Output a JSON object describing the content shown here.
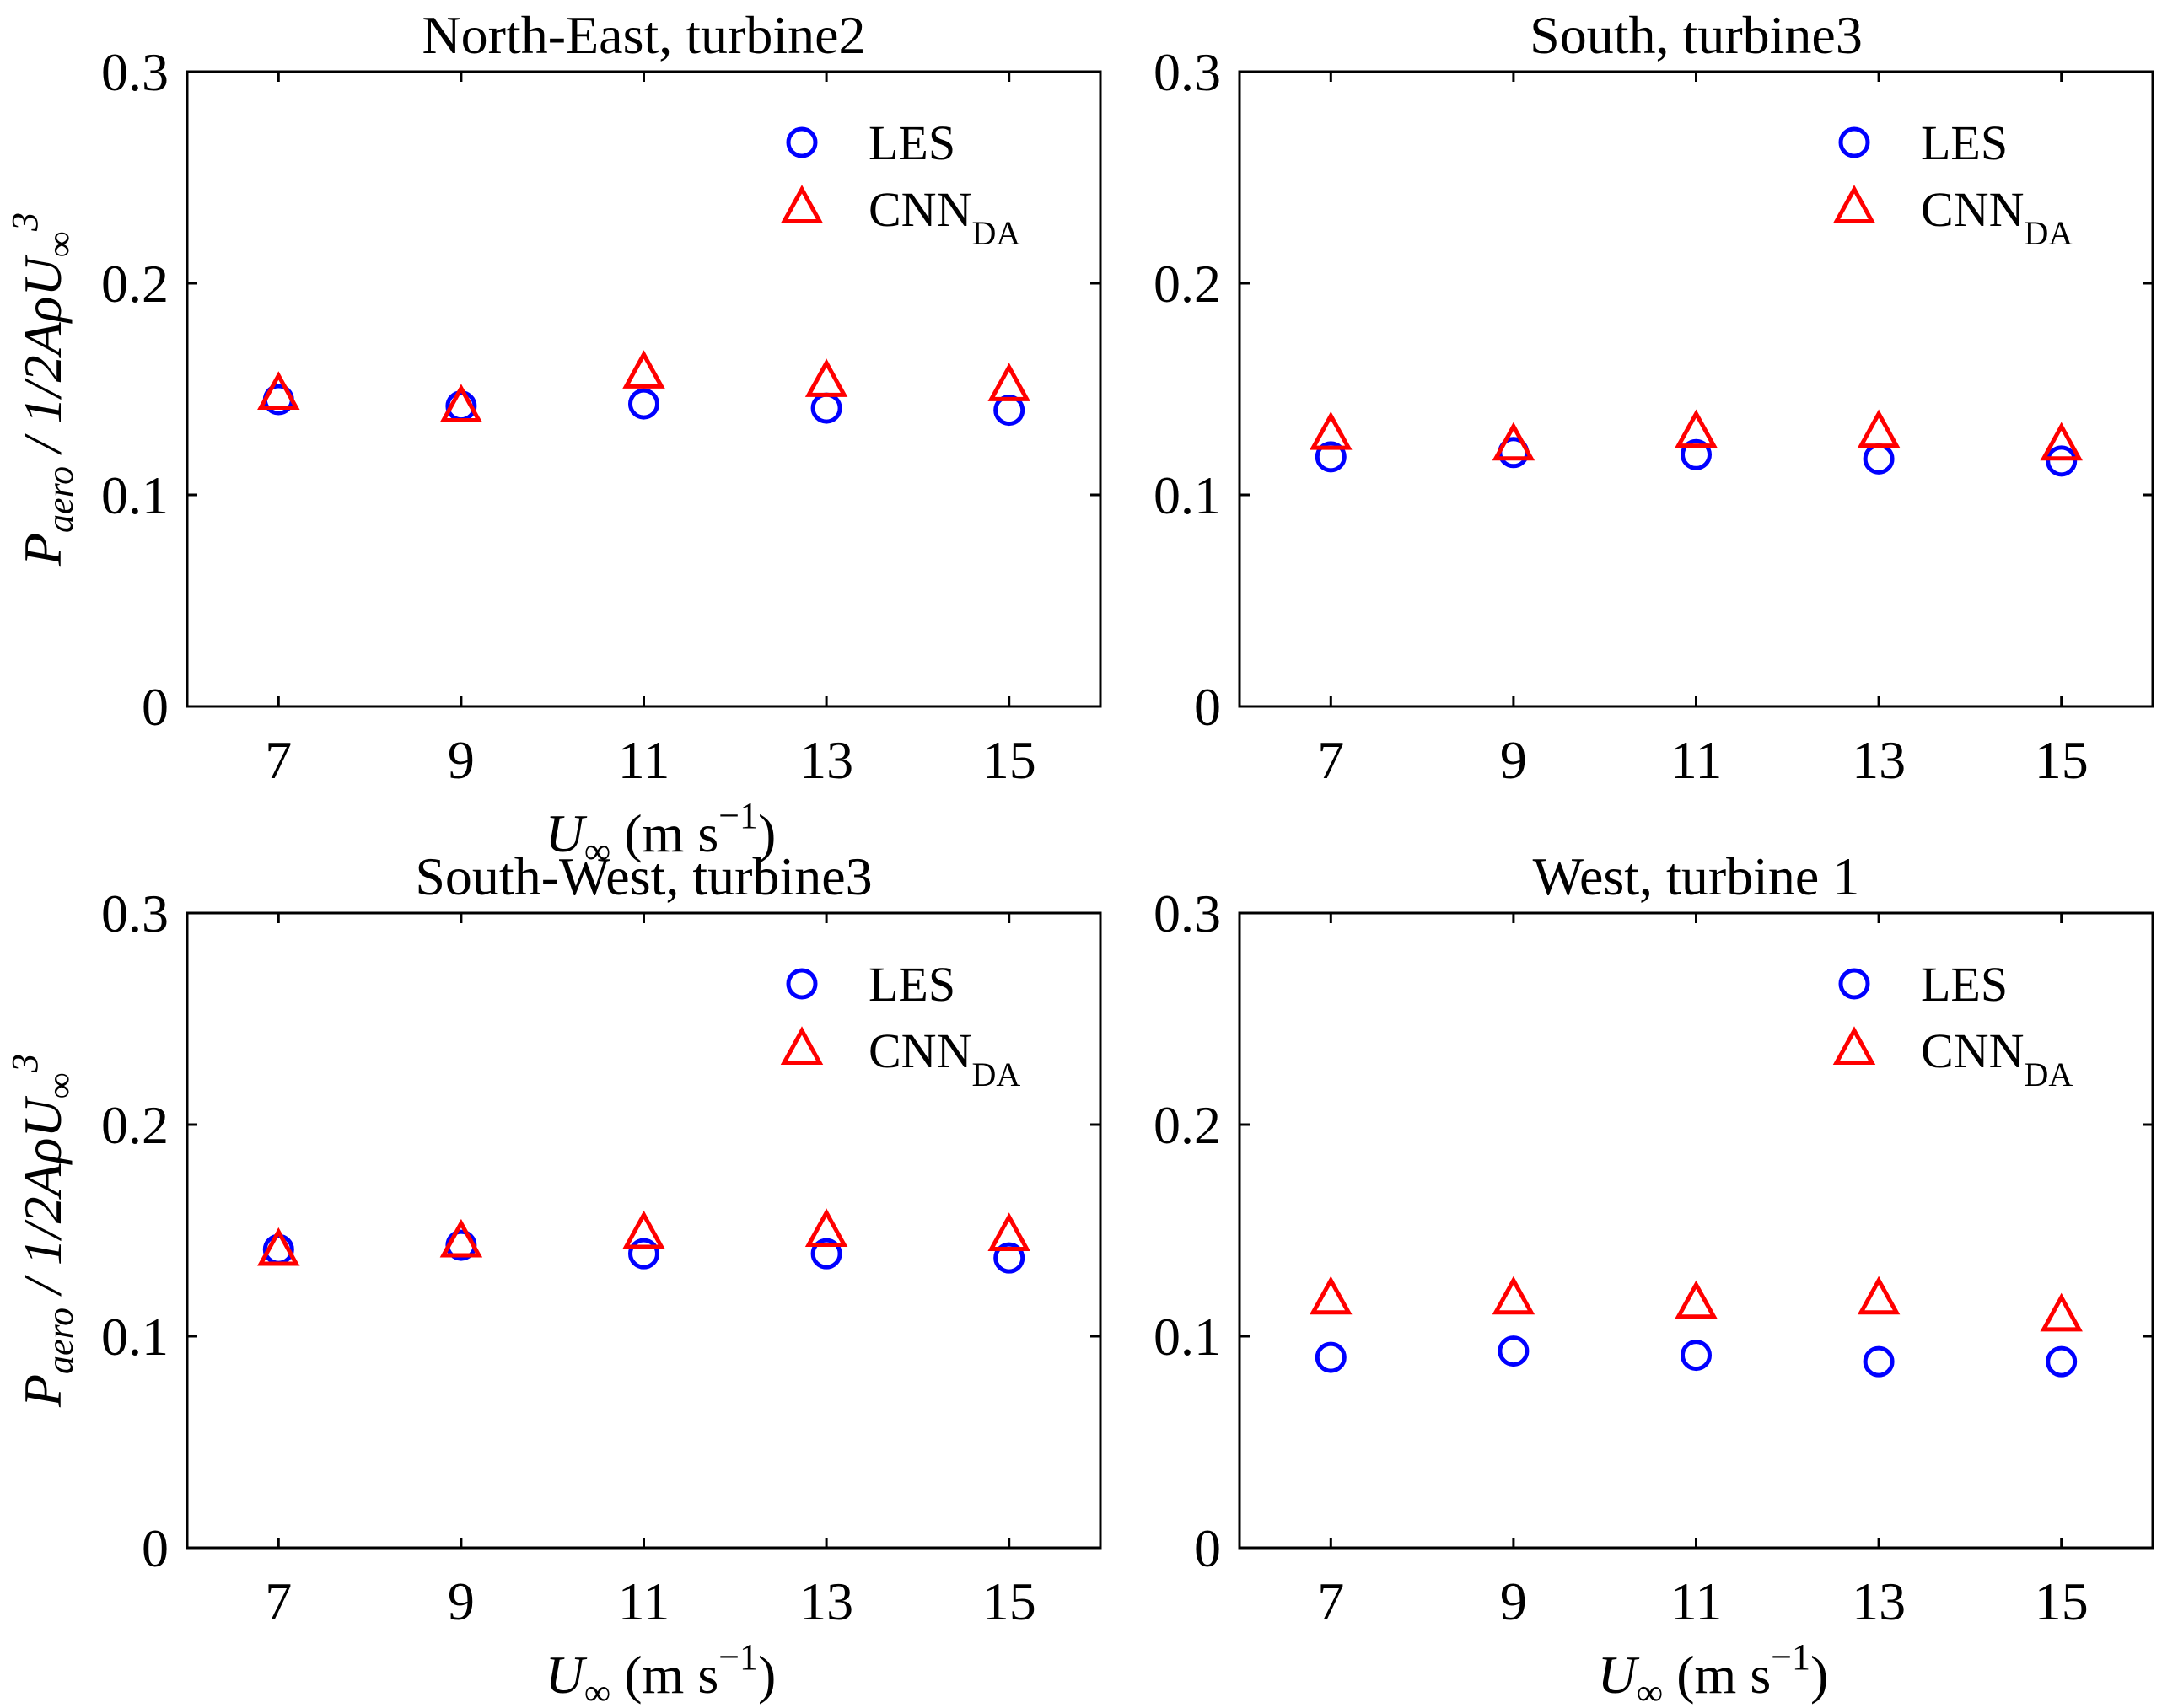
{
  "figure": {
    "colors": {
      "les": "#0000ff",
      "cnn": "#ff0000",
      "axis": "#000000"
    },
    "ylabel": {
      "main": "P",
      "main_sub": "aero",
      "middle": " / 1/2AρU",
      "inf_sup_base": "∞",
      "power": "3"
    },
    "xlabel": {
      "main": "U",
      "main_sub": "∞",
      "unit": " (m s",
      "power": "−1",
      "close": ")"
    }
  },
  "chart_data": [
    {
      "type": "scatter",
      "title": "North-East, turbine2",
      "xlabel": "U∞ (m s−1)",
      "ylabel": "Paero / 1/2AρU∞3",
      "x": [
        7,
        9,
        11,
        13,
        15
      ],
      "x_tick_labels": [
        "7",
        "9",
        "11",
        "13",
        "15"
      ],
      "y_tick_labels": [
        "0",
        "0.1",
        "0.2",
        "0.3"
      ],
      "y_ticks": [
        0,
        0.1,
        0.2,
        0.3
      ],
      "xlim": [
        6,
        16
      ],
      "ylim": [
        0,
        0.3
      ],
      "legend_position": "top-right",
      "series": [
        {
          "name": "LES",
          "name_sub": "",
          "marker": "circle",
          "color": "#0000ff",
          "values": [
            0.145,
            0.142,
            0.143,
            0.141,
            0.14
          ]
        },
        {
          "name": "CNN",
          "name_sub": "DA",
          "marker": "triangle",
          "color": "#ff0000",
          "values": [
            0.147,
            0.141,
            0.157,
            0.153,
            0.151
          ]
        }
      ]
    },
    {
      "type": "scatter",
      "title": "South, turbine3",
      "xlabel": "",
      "ylabel": "",
      "x": [
        7,
        9,
        11,
        13,
        15
      ],
      "x_tick_labels": [
        "7",
        "9",
        "11",
        "13",
        "15"
      ],
      "y_tick_labels": [
        "0",
        "0.1",
        "0.2",
        "0.3"
      ],
      "y_ticks": [
        0,
        0.1,
        0.2,
        0.3
      ],
      "xlim": [
        6,
        16
      ],
      "ylim": [
        0,
        0.3
      ],
      "legend_position": "top-right",
      "series": [
        {
          "name": "LES",
          "name_sub": "",
          "marker": "circle",
          "color": "#0000ff",
          "values": [
            0.118,
            0.12,
            0.119,
            0.117,
            0.116
          ]
        },
        {
          "name": "CNN",
          "name_sub": "DA",
          "marker": "triangle",
          "color": "#ff0000",
          "values": [
            0.128,
            0.123,
            0.129,
            0.129,
            0.123
          ]
        }
      ]
    },
    {
      "type": "scatter",
      "title": "South-West, turbine3",
      "xlabel": "U∞ (m s−1)",
      "ylabel": "Paero / 1/2AρU∞3",
      "x": [
        7,
        9,
        11,
        13,
        15
      ],
      "x_tick_labels": [
        "7",
        "9",
        "11",
        "13",
        "15"
      ],
      "y_tick_labels": [
        "0",
        "0.1",
        "0.2",
        "0.3"
      ],
      "y_ticks": [
        0,
        0.1,
        0.2,
        0.3
      ],
      "xlim": [
        6,
        16
      ],
      "ylim": [
        0,
        0.3
      ],
      "legend_position": "top-right",
      "series": [
        {
          "name": "LES",
          "name_sub": "",
          "marker": "circle",
          "color": "#0000ff",
          "values": [
            0.141,
            0.143,
            0.139,
            0.139,
            0.137
          ]
        },
        {
          "name": "CNN",
          "name_sub": "DA",
          "marker": "triangle",
          "color": "#ff0000",
          "values": [
            0.14,
            0.144,
            0.148,
            0.149,
            0.147
          ]
        }
      ]
    },
    {
      "type": "scatter",
      "title": "West, turbine 1",
      "xlabel": "U∞ (m s−1)",
      "ylabel": "",
      "x": [
        7,
        9,
        11,
        13,
        15
      ],
      "x_tick_labels": [
        "7",
        "9",
        "11",
        "13",
        "15"
      ],
      "y_tick_labels": [
        "0",
        "0.1",
        "0.2",
        "0.3"
      ],
      "y_ticks": [
        0,
        0.1,
        0.2,
        0.3
      ],
      "xlim": [
        6,
        16
      ],
      "ylim": [
        0,
        0.3
      ],
      "legend_position": "top-right",
      "series": [
        {
          "name": "LES",
          "name_sub": "",
          "marker": "circle",
          "color": "#0000ff",
          "values": [
            0.09,
            0.093,
            0.091,
            0.088,
            0.088
          ]
        },
        {
          "name": "CNN",
          "name_sub": "DA",
          "marker": "triangle",
          "color": "#ff0000",
          "values": [
            0.117,
            0.117,
            0.115,
            0.117,
            0.109
          ]
        }
      ]
    }
  ]
}
